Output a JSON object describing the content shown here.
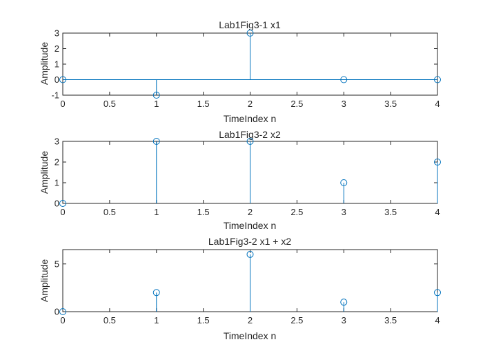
{
  "figure": {
    "background": "#ffffff"
  },
  "style": {
    "stem_color": "#0072BD",
    "axis_color": "#262626"
  },
  "chart_data": [
    {
      "type": "stem",
      "title": "Lab1Fig3-1 x1",
      "xlabel": "TimeIndex n",
      "ylabel": "Amplitude",
      "x": [
        0,
        1,
        2,
        3,
        4
      ],
      "values": [
        0,
        -1,
        3,
        0,
        0
      ],
      "xlim": [
        0,
        4
      ],
      "ylim": [
        -1,
        3
      ],
      "xticks": [
        0,
        0.5,
        1,
        1.5,
        2,
        2.5,
        3,
        3.5,
        4
      ],
      "xtick_labels": [
        "0",
        "0.5",
        "1",
        "1.5",
        "2",
        "2.5",
        "3",
        "3.5",
        "4"
      ],
      "yticks": [
        -1,
        0,
        1,
        2,
        3
      ],
      "ytick_labels": [
        "-1",
        "0",
        "1",
        "2",
        "3"
      ],
      "baseline": 0,
      "show_baseline": true,
      "grid": false
    },
    {
      "type": "stem",
      "title": "Lab1Fig3-2 x2",
      "xlabel": "TimeIndex n",
      "ylabel": "Amplitude",
      "x": [
        0,
        1,
        2,
        3,
        4
      ],
      "values": [
        0,
        3,
        3,
        1,
        2
      ],
      "xlim": [
        0,
        4
      ],
      "ylim": [
        0,
        3
      ],
      "xticks": [
        0,
        0.5,
        1,
        1.5,
        2,
        2.5,
        3,
        3.5,
        4
      ],
      "xtick_labels": [
        "0",
        "0.5",
        "1",
        "1.5",
        "2",
        "2.5",
        "3",
        "3.5",
        "4"
      ],
      "yticks": [
        0,
        1,
        2,
        3
      ],
      "ytick_labels": [
        "0",
        "1",
        "2",
        "3"
      ],
      "baseline": 0,
      "show_baseline": false,
      "grid": false
    },
    {
      "type": "stem",
      "title": "Lab1Fig3-2 x1 + x2",
      "xlabel": "TimeIndex n",
      "ylabel": "Amplitude",
      "x": [
        0,
        1,
        2,
        3,
        4
      ],
      "values": [
        0,
        2,
        6,
        1,
        2
      ],
      "xlim": [
        0,
        4
      ],
      "ylim": [
        0,
        6.5
      ],
      "xticks": [
        0,
        0.5,
        1,
        1.5,
        2,
        2.5,
        3,
        3.5,
        4
      ],
      "xtick_labels": [
        "0",
        "0.5",
        "1",
        "1.5",
        "2",
        "2.5",
        "3",
        "3.5",
        "4"
      ],
      "yticks": [
        0,
        5
      ],
      "ytick_labels": [
        "0",
        "5"
      ],
      "baseline": 0,
      "show_baseline": false,
      "grid": false
    }
  ]
}
